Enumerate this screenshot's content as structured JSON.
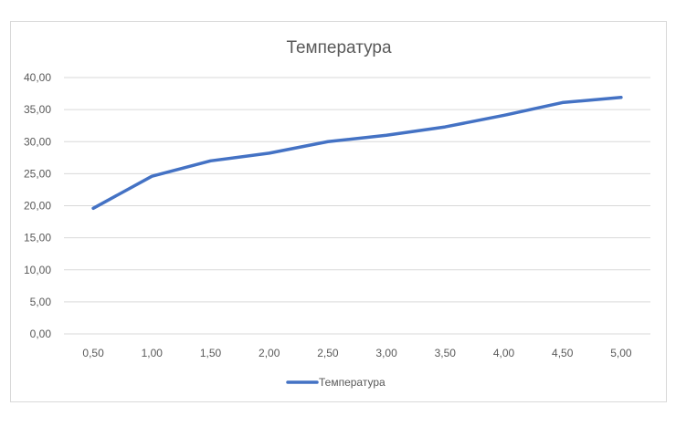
{
  "chart_data": {
    "type": "line",
    "title": "Температура",
    "xlabel": "",
    "ylabel": "",
    "categories": [
      "0,50",
      "1,00",
      "1,50",
      "2,00",
      "2,50",
      "3,00",
      "3,50",
      "4,00",
      "4,50",
      "5,00"
    ],
    "y_ticks": [
      "0,00",
      "5,00",
      "10,00",
      "15,00",
      "20,00",
      "25,00",
      "30,00",
      "35,00",
      "40,00"
    ],
    "ylim": [
      0,
      40
    ],
    "grid": true,
    "legend_position": "bottom",
    "series": [
      {
        "name": "Температура",
        "color": "#4472c4",
        "values": [
          19.6,
          24.6,
          27.0,
          28.2,
          30.0,
          31.0,
          32.3,
          34.1,
          36.1,
          36.9
        ]
      }
    ]
  }
}
